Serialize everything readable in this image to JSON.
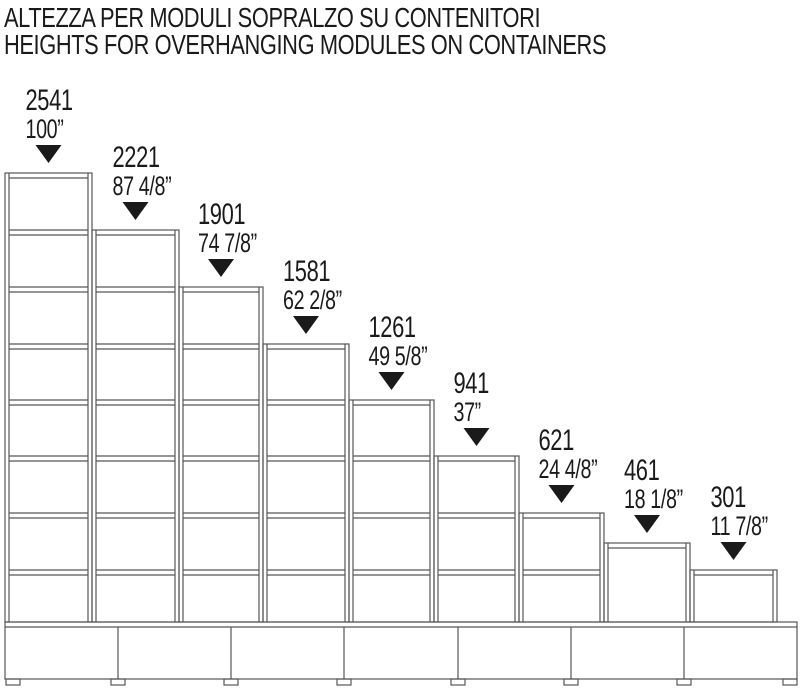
{
  "title": {
    "line1": "ALTEZZA PER MODULI SOPRALZO SU CONTENITORI",
    "line2": "HEIGHTS FOR OVERHANGING MODULES ON CONTAINERS"
  },
  "modules": [
    {
      "height_mm": "2541",
      "height_in": "100”"
    },
    {
      "height_mm": "2221",
      "height_in": "87 4/8”"
    },
    {
      "height_mm": "1901",
      "height_in": "74 7/8”"
    },
    {
      "height_mm": "1581",
      "height_in": "62 2/8”"
    },
    {
      "height_mm": "1261",
      "height_in": "49 5/8”"
    },
    {
      "height_mm": "941",
      "height_in": "37”"
    },
    {
      "height_mm": "621",
      "height_in": "24 4/8”"
    },
    {
      "height_mm": "461",
      "height_in": "18 1/8”"
    },
    {
      "height_mm": "301",
      "height_in": "11 7/8”"
    }
  ],
  "colors": {
    "line": "#565656",
    "text": "#1a1a1a",
    "marker": "#1a1a1a",
    "background": "#ffffff"
  }
}
